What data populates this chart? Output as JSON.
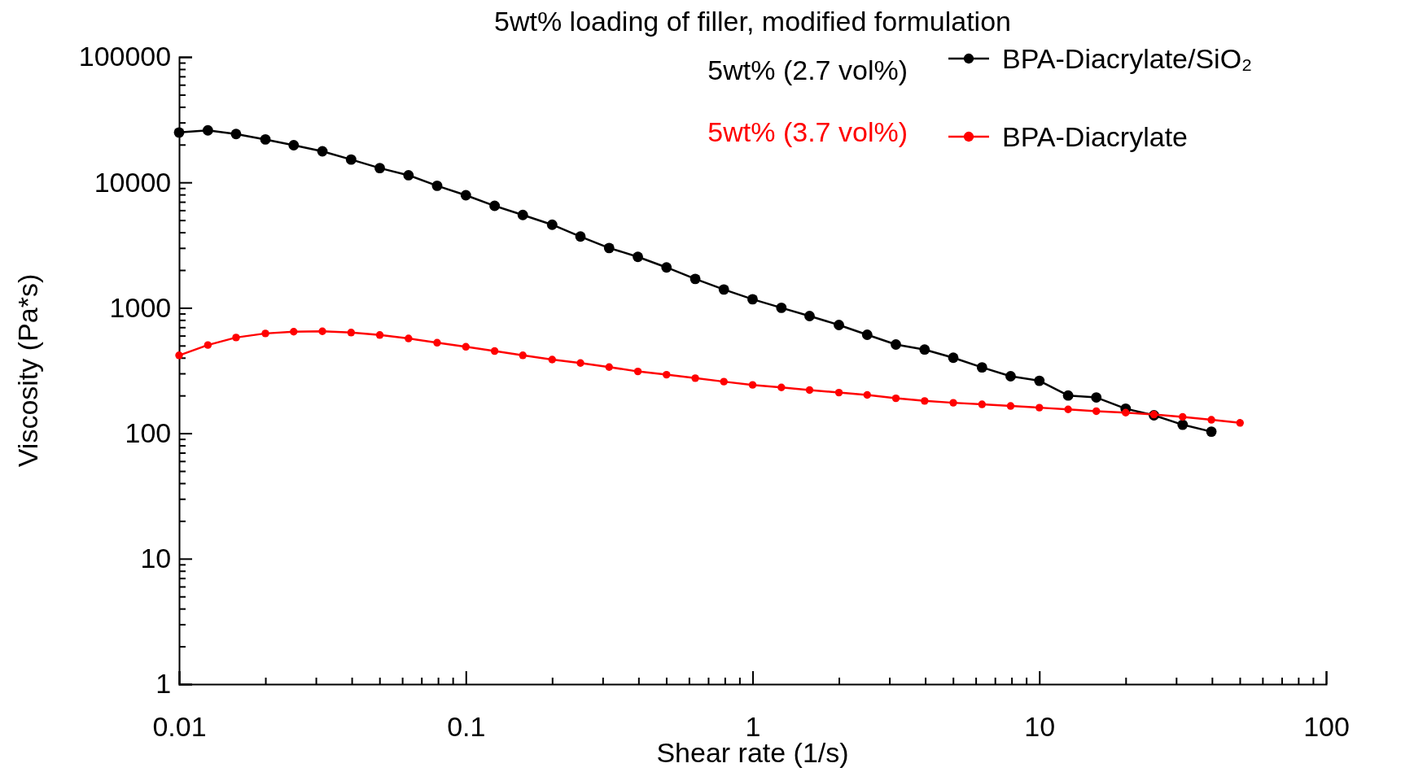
{
  "chart_data": {
    "type": "line",
    "title": "5wt% loading of filler, modified formulation",
    "xlabel": "Shear rate (1/s)",
    "ylabel": "Viscosity (Pa*s)",
    "log": "xy",
    "grid": false,
    "legend": "top right",
    "marker": "circle",
    "line_style": "solid",
    "annotations": [
      "5wt% (2.7 vol%)",
      "5wt% (3.7 vol%)"
    ],
    "xlim": [
      0.01,
      100
    ],
    "xticks": [
      0.01,
      0.1,
      1,
      10,
      100
    ],
    "ylim": [
      1,
      100000
    ],
    "yticks": [
      1,
      10,
      100,
      1000,
      10000,
      100000
    ],
    "series": [
      {
        "name": "BPA-Diacrylate/SiO₂",
        "color": "#000000",
        "x": [
          0.01,
          0.0126,
          0.0158,
          0.02,
          0.0251,
          0.0316,
          0.0398,
          0.0501,
          0.0631,
          0.0794,
          0.1,
          0.126,
          0.158,
          0.2,
          0.251,
          0.316,
          0.398,
          0.501,
          0.631,
          0.794,
          1,
          1.26,
          1.58,
          2,
          2.51,
          3.16,
          3.98,
          5.01,
          6.31,
          7.94,
          10,
          12.6,
          15.8,
          20,
          25.1,
          31.6,
          39.8
        ],
        "values": [
          25000,
          26000,
          24300,
          22000,
          19800,
          17700,
          15200,
          13000,
          11400,
          9400,
          7900,
          6500,
          5500,
          4600,
          3700,
          3000,
          2550,
          2100,
          1700,
          1400,
          1170,
          1000,
          860,
          730,
          610,
          510,
          465,
          400,
          335,
          285,
          262,
          200,
          193,
          157,
          139,
          117,
          103
        ]
      },
      {
        "name": "BPA-Diacrylate",
        "color": "#ff0000",
        "x": [
          0.01,
          0.0126,
          0.0158,
          0.02,
          0.0251,
          0.0316,
          0.0398,
          0.0501,
          0.0631,
          0.0794,
          0.1,
          0.126,
          0.158,
          0.2,
          0.251,
          0.316,
          0.398,
          0.501,
          0.631,
          0.794,
          1,
          1.26,
          1.58,
          2,
          2.51,
          3.16,
          3.98,
          5.01,
          6.31,
          7.94,
          10,
          12.6,
          15.8,
          20,
          25.1,
          31.6,
          39.8,
          50.1
        ],
        "values": [
          418,
          505,
          580,
          625,
          645,
          650,
          635,
          607,
          570,
          527,
          489,
          452,
          418,
          387,
          363,
          337,
          311,
          293,
          275,
          258,
          243,
          232,
          221,
          211,
          202,
          190,
          181,
          175,
          170,
          165,
          160,
          155,
          150,
          146,
          141,
          135,
          128,
          121
        ]
      }
    ]
  }
}
